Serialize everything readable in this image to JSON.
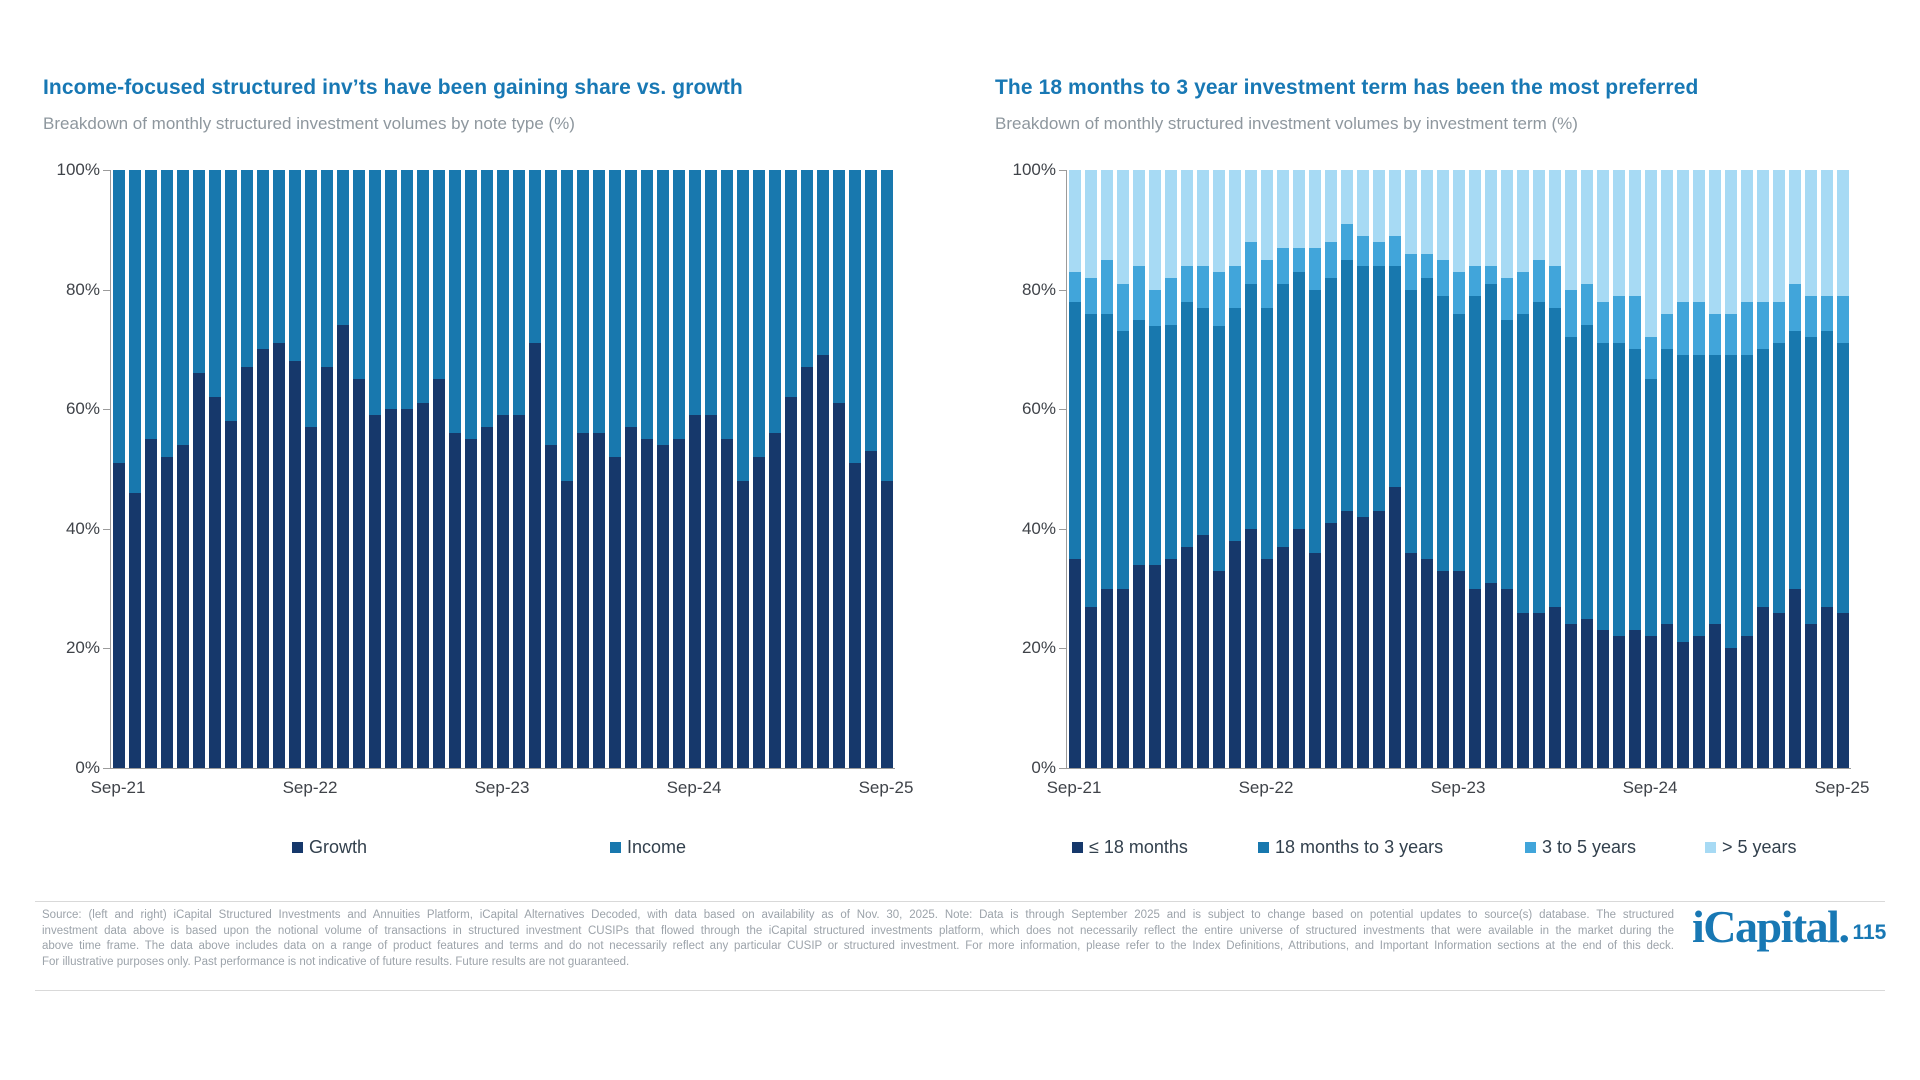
{
  "charts": [
    {
      "title": "Income-focused structured inv’ts have been gaining share vs. growth",
      "subtitle": "Breakdown of monthly structured investment volumes by note type (%)",
      "y_tick_labels": [
        "0%",
        "20%",
        "40%",
        "60%",
        "80%",
        "100%"
      ],
      "y_tick_values": [
        0,
        20,
        40,
        60,
        80,
        100
      ],
      "x_tick_labels": [
        "Sep-21",
        "Sep-22",
        "Sep-23",
        "Sep-24",
        "Sep-25"
      ],
      "x_tick_indices": [
        0,
        12,
        24,
        36,
        48
      ],
      "legend": [
        {
          "label": "Growth",
          "color": "#16386B"
        },
        {
          "label": "Income",
          "color": "#1878AE"
        }
      ]
    },
    {
      "title": "The 18 months to 3 year investment term has been the most preferred",
      "subtitle": "Breakdown of monthly structured investment volumes by investment term (%)",
      "y_tick_labels": [
        "0%",
        "20%",
        "40%",
        "60%",
        "80%",
        "100%"
      ],
      "y_tick_values": [
        0,
        20,
        40,
        60,
        80,
        100
      ],
      "x_tick_labels": [
        "Sep-21",
        "Sep-22",
        "Sep-23",
        "Sep-24",
        "Sep-25"
      ],
      "x_tick_indices": [
        0,
        12,
        24,
        36,
        48
      ],
      "legend": [
        {
          "label": "≤ 18 months",
          "color": "#16386B"
        },
        {
          "label": "18 months to 3 years",
          "color": "#1878AE"
        },
        {
          "label": "3 to 5 years",
          "color": "#41A5DA"
        },
        {
          "label": "> 5 years",
          "color": "#A7DAF4"
        }
      ]
    }
  ],
  "chart_data": [
    {
      "type": "bar",
      "stacked": true,
      "title": "Breakdown of monthly structured investment volumes by note type (%)",
      "ylim": [
        0,
        100
      ],
      "grid": false,
      "legend_position": "bottom",
      "categories": [
        "Sep-21",
        "Oct-21",
        "Nov-21",
        "Dec-21",
        "Jan-22",
        "Feb-22",
        "Mar-22",
        "Apr-22",
        "May-22",
        "Jun-22",
        "Jul-22",
        "Aug-22",
        "Sep-22",
        "Oct-22",
        "Nov-22",
        "Dec-22",
        "Jan-23",
        "Feb-23",
        "Mar-23",
        "Apr-23",
        "May-23",
        "Jun-23",
        "Jul-23",
        "Aug-23",
        "Sep-23",
        "Oct-23",
        "Nov-23",
        "Dec-23",
        "Jan-24",
        "Feb-24",
        "Mar-24",
        "Apr-24",
        "May-24",
        "Jun-24",
        "Jul-24",
        "Aug-24",
        "Sep-24",
        "Oct-24",
        "Nov-24",
        "Dec-24",
        "Jan-25",
        "Feb-25",
        "Mar-25",
        "Apr-25",
        "May-25",
        "Jun-25",
        "Jul-25",
        "Aug-25",
        "Sep-25"
      ],
      "series": [
        {
          "name": "Growth",
          "color": "#16386B",
          "values": [
            51,
            46,
            55,
            52,
            54,
            66,
            62,
            58,
            67,
            70,
            71,
            68,
            57,
            67,
            74,
            65,
            59,
            60,
            60,
            61,
            65,
            56,
            55,
            57,
            59,
            59,
            71,
            54,
            48,
            56,
            56,
            52,
            57,
            55,
            54,
            55,
            59,
            59,
            55,
            48,
            52,
            56,
            62,
            67,
            69,
            61,
            51,
            53,
            48
          ]
        },
        {
          "name": "Income",
          "color": "#1878AE",
          "values": [
            49,
            54,
            45,
            48,
            46,
            34,
            38,
            42,
            33,
            30,
            29,
            32,
            43,
            33,
            26,
            35,
            41,
            40,
            40,
            39,
            35,
            44,
            45,
            43,
            41,
            41,
            29,
            46,
            52,
            44,
            44,
            48,
            43,
            45,
            46,
            45,
            41,
            41,
            45,
            52,
            48,
            44,
            38,
            33,
            31,
            39,
            49,
            47,
            52
          ]
        }
      ]
    },
    {
      "type": "bar",
      "stacked": true,
      "title": "Breakdown of monthly structured investment volumes by investment term (%)",
      "ylim": [
        0,
        100
      ],
      "grid": false,
      "legend_position": "bottom",
      "categories": [
        "Sep-21",
        "Oct-21",
        "Nov-21",
        "Dec-21",
        "Jan-22",
        "Feb-22",
        "Mar-22",
        "Apr-22",
        "May-22",
        "Jun-22",
        "Jul-22",
        "Aug-22",
        "Sep-22",
        "Oct-22",
        "Nov-22",
        "Dec-22",
        "Jan-23",
        "Feb-23",
        "Mar-23",
        "Apr-23",
        "May-23",
        "Jun-23",
        "Jul-23",
        "Aug-23",
        "Sep-23",
        "Oct-23",
        "Nov-23",
        "Dec-23",
        "Jan-24",
        "Feb-24",
        "Mar-24",
        "Apr-24",
        "May-24",
        "Jun-24",
        "Jul-24",
        "Aug-24",
        "Sep-24",
        "Oct-24",
        "Nov-24",
        "Dec-24",
        "Jan-25",
        "Feb-25",
        "Mar-25",
        "Apr-25",
        "May-25",
        "Jun-25",
        "Jul-25",
        "Aug-25",
        "Sep-25"
      ],
      "series": [
        {
          "name": "≤ 18 months",
          "color": "#16386B",
          "values": [
            35,
            27,
            30,
            30,
            34,
            34,
            35,
            37,
            39,
            33,
            38,
            40,
            35,
            37,
            40,
            36,
            41,
            43,
            42,
            43,
            47,
            36,
            35,
            33,
            33,
            30,
            31,
            30,
            26,
            26,
            27,
            24,
            25,
            23,
            22,
            23,
            22,
            24,
            21,
            22,
            24,
            20,
            22,
            27,
            26,
            30,
            24,
            27,
            26
          ]
        },
        {
          "name": "18 months to 3 years",
          "color": "#1878AE",
          "values": [
            43,
            49,
            46,
            43,
            41,
            40,
            39,
            41,
            38,
            41,
            39,
            41,
            42,
            44,
            43,
            44,
            41,
            42,
            42,
            41,
            37,
            44,
            47,
            46,
            43,
            49,
            50,
            45,
            50,
            52,
            50,
            48,
            49,
            48,
            49,
            47,
            43,
            46,
            48,
            47,
            45,
            49,
            47,
            43,
            45,
            43,
            48,
            46,
            45
          ]
        },
        {
          "name": "3 to 5 years",
          "color": "#41A5DA",
          "values": [
            5,
            6,
            9,
            8,
            9,
            6,
            8,
            6,
            7,
            9,
            7,
            7,
            8,
            6,
            4,
            7,
            6,
            6,
            5,
            4,
            5,
            6,
            4,
            6,
            7,
            5,
            3,
            7,
            7,
            7,
            7,
            8,
            7,
            7,
            8,
            9,
            7,
            6,
            9,
            9,
            7,
            7,
            9,
            8,
            7,
            8,
            7,
            6,
            8
          ]
        },
        {
          "name": "> 5 years",
          "color": "#A7DAF4",
          "values": [
            17,
            18,
            15,
            19,
            16,
            20,
            18,
            16,
            16,
            17,
            16,
            12,
            15,
            13,
            13,
            13,
            12,
            9,
            11,
            12,
            11,
            14,
            14,
            15,
            17,
            16,
            16,
            18,
            17,
            15,
            16,
            20,
            19,
            22,
            21,
            21,
            28,
            24,
            22,
            22,
            24,
            24,
            22,
            22,
            22,
            19,
            21,
            21,
            21
          ]
        }
      ]
    }
  ],
  "colors": {
    "title_blue": "#1878B4",
    "subtitle_gray": "#8E979E",
    "axis_text": "#3F4349",
    "axis_line": "#9B9B9B",
    "navy": "#16386B",
    "medium_blue": "#1878AE",
    "light_blue": "#41A5DA",
    "pale_blue": "#A7DAF4",
    "footer_text": "#9CA3AA",
    "logo_blue": "#1878B4"
  },
  "footer": {
    "source_lines": [
      "Source: (left and right) iCapital Structured Investments and Annuities Platform, iCapital Alternatives Decoded, with data based on availability as of Nov. 30, 2025. Note: Data is through September 2025 and is subject to change based on potential updates to source(s) database. The structured",
      "investment data above is based upon the notional volume of transactions in structured investment CUSIPs that flowed through the iCapital structured investments platform, which does not necessarily reflect the entire universe of structured investments that were available in the market during the",
      "above time frame. The data above includes data on a range of product features and terms and do not necessarily reflect any particular CUSIP or structured investment. For more information, please refer to the Index Definitions, Attributions, and Important Information sections at the end of this deck.",
      "For illustrative purposes only. Past performance is not indicative of future results. Future results are not guaranteed."
    ],
    "logo_text": "iCapital.",
    "page_number": "115"
  }
}
